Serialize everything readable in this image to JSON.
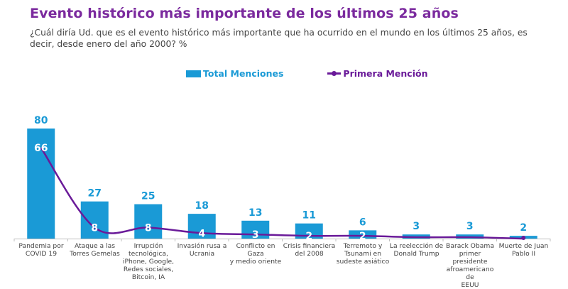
{
  "header": {
    "title": "Evento histórico más importante de los últimos 25 años",
    "subtitle": "¿Cuál diría Ud. que es el evento histórico más importante que ha ocurrido en el mundo en los últimos 25 años, es decir, desde enero del año 2000? %"
  },
  "legend": {
    "total_label": "Total Menciones",
    "primera_label": "Primera Mención"
  },
  "colors": {
    "bar": "#1a9ad6",
    "line": "#6a1a99",
    "title": "#7b2a9e"
  },
  "chart_data": {
    "type": "bar",
    "title": "Evento histórico más importante de los últimos 25 años",
    "xlabel": "",
    "ylabel": "%",
    "ylim": [
      0,
      80
    ],
    "grid": false,
    "legend_position": "top",
    "categories": [
      "Pandemia por COVID 19",
      "Ataque a las Torres Gemelas",
      "Irrupción tecnológica, iPhone, Google, Redes sociales, Bitcoin, IA",
      "Invasión rusa a Ucrania",
      "Conflicto en Gaza y medio oriente",
      "Crisis financiera del 2008",
      "Terremoto y Tsunami en sudeste asiático",
      "La reelección de Donald Trump",
      "Barack Obama primer presidente afroamericano de EEUU",
      "Muerte de Juan Pablo II"
    ],
    "category_lines": [
      [
        "Pandemia por",
        "COVID 19"
      ],
      [
        "Ataque a las",
        "Torres Gemelas"
      ],
      [
        "Irrupción",
        "tecnológica,",
        "iPhone, Google,",
        "Redes sociales,",
        "Bitcoin, IA"
      ],
      [
        "Invasión rusa a",
        "Ucrania"
      ],
      [
        "Conflicto en Gaza",
        "y medio oriente"
      ],
      [
        "Crisis financiera",
        "del 2008"
      ],
      [
        "Terremoto y",
        "Tsunami en",
        "sudeste asiático"
      ],
      [
        "La reelección de",
        "Donald Trump"
      ],
      [
        "Barack Obama",
        "primer",
        "presidente",
        "afroamericano de",
        "EEUU"
      ],
      [
        "Muerte de Juan",
        "Pablo II"
      ]
    ],
    "series": [
      {
        "name": "Total Menciones",
        "type": "bar",
        "values": [
          80,
          27,
          25,
          18,
          13,
          11,
          6,
          3,
          3,
          2
        ]
      },
      {
        "name": "Primera Mención",
        "type": "line",
        "values": [
          66,
          8,
          8,
          4,
          3,
          2,
          2,
          1,
          1,
          0
        ],
        "labels": [
          "66",
          "8",
          "8",
          "4",
          "3",
          "2",
          "2",
          "",
          "",
          ""
        ]
      }
    ]
  }
}
